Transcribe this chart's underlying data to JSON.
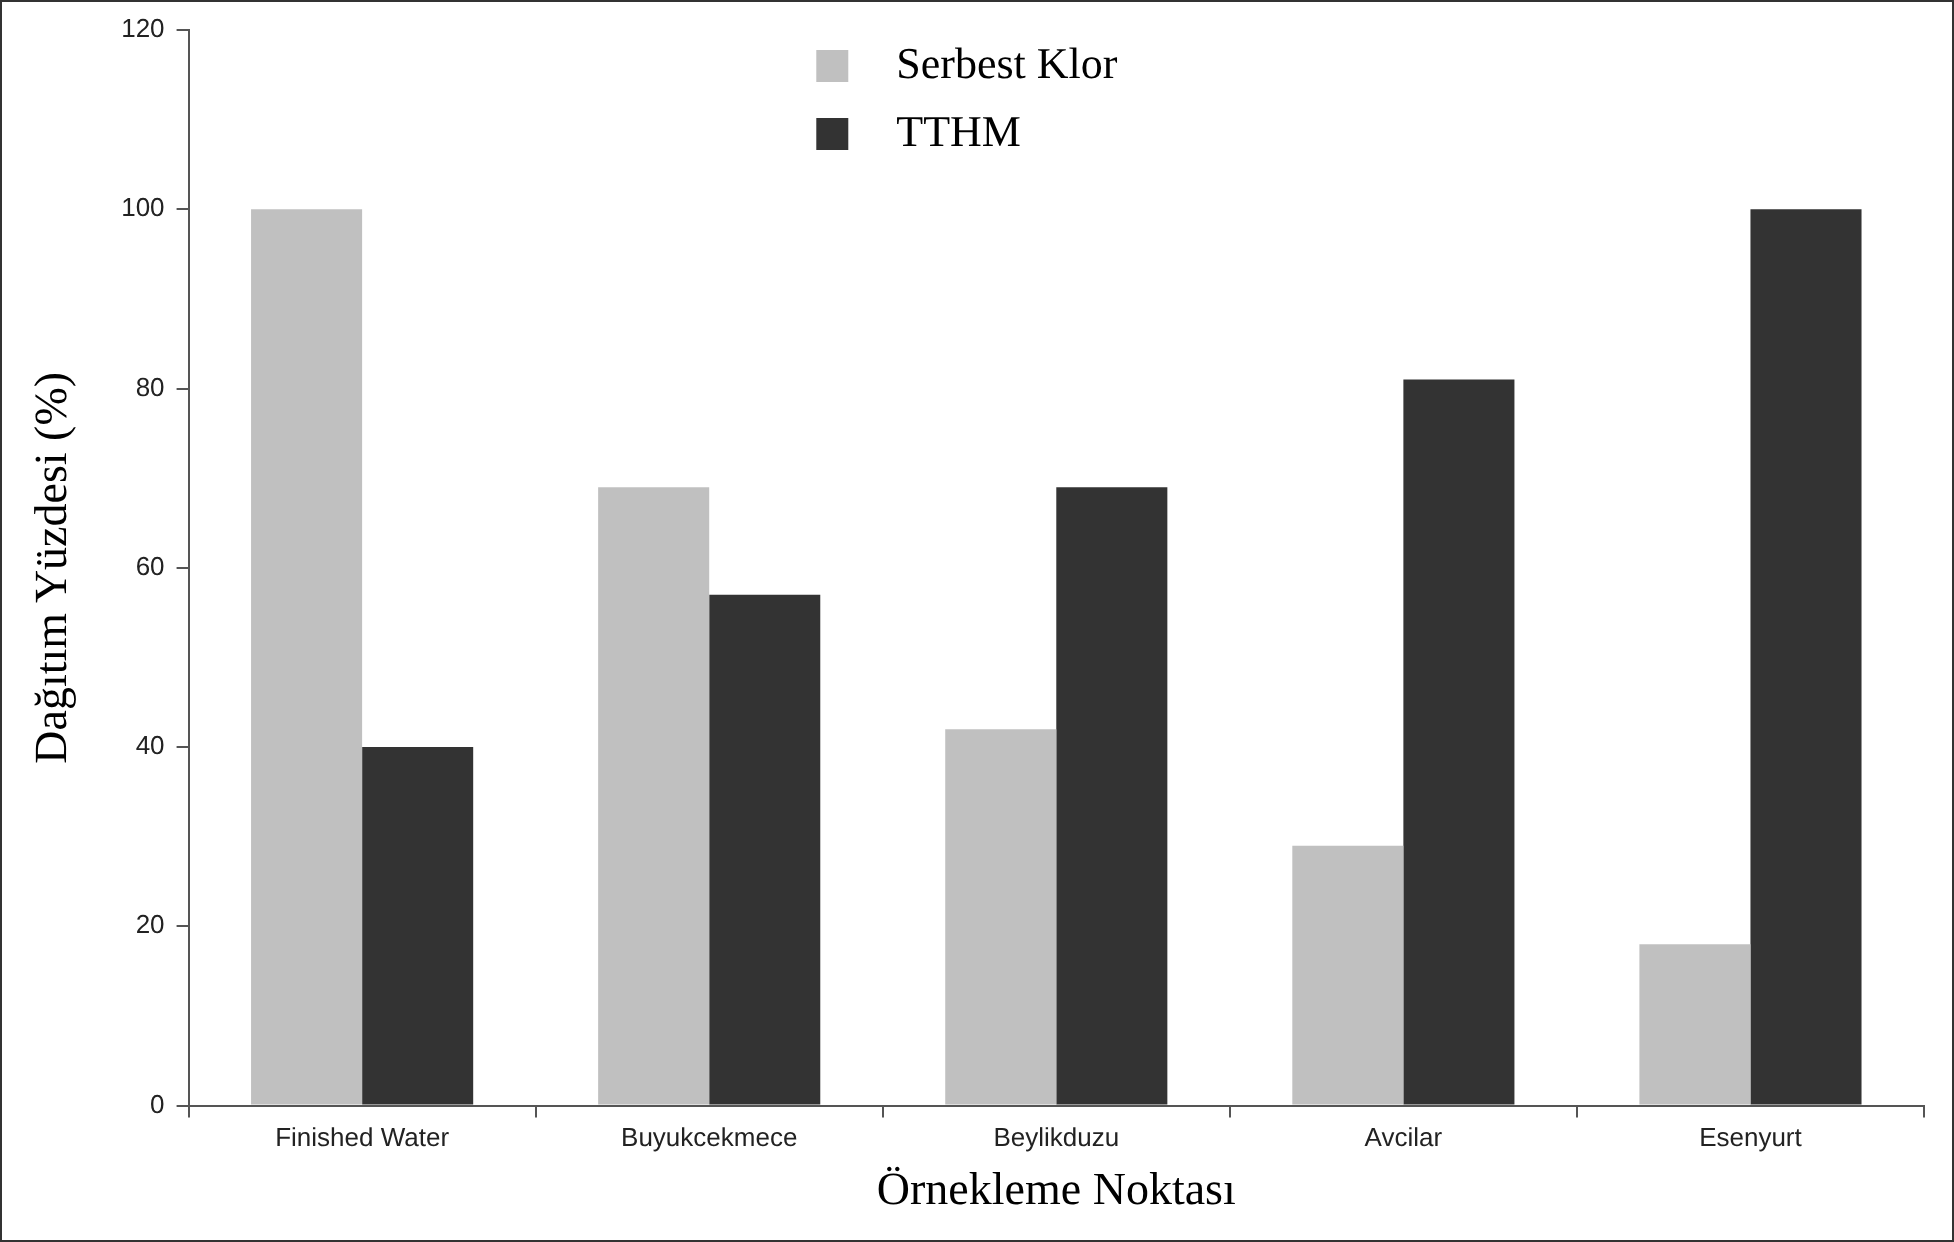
{
  "chart_data": {
    "type": "bar",
    "xlabel": "Örnekleme Noktası",
    "ylabel": "Dağıtım Yüzdesi (%)",
    "categories": [
      "Finished Water",
      "Buyukcekmece",
      "Beylikduzu",
      "Avcilar",
      "Esenyurt"
    ],
    "series": [
      {
        "name": "Serbest Klor",
        "color": "#c0c0c0",
        "values": [
          100,
          69,
          42,
          29,
          18
        ]
      },
      {
        "name": "TTHM",
        "color": "#333333",
        "values": [
          40,
          57,
          69,
          81,
          100
        ]
      }
    ],
    "ylim": [
      0,
      120
    ],
    "yticks": [
      0,
      20,
      40,
      60,
      80,
      100,
      120
    ],
    "grid": false,
    "legend": "top"
  }
}
